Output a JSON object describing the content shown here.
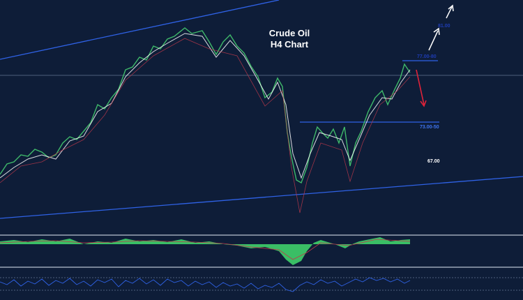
{
  "header": {
    "title": [
      "Crude Oil",
      "H4 Chart"
    ]
  },
  "levels": [
    "81.00",
    "77.00-80",
    "73.00-50",
    "67.00"
  ]
}
